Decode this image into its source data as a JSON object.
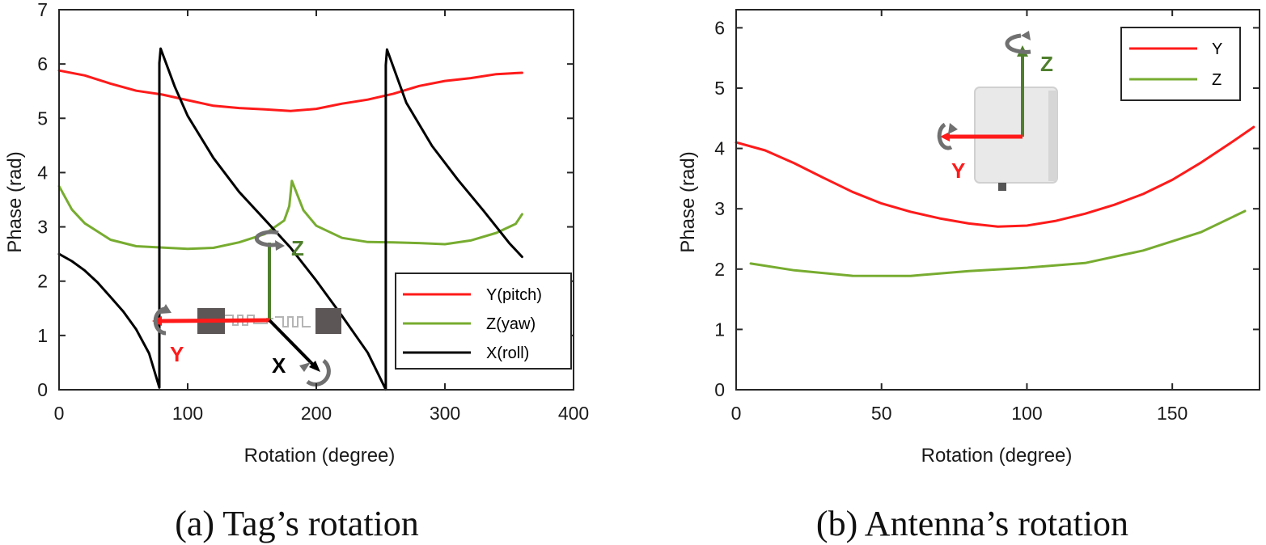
{
  "colors": {
    "red": "#ff1a1a",
    "green": "#77ac30",
    "black": "#000000",
    "axis_green": "#4f7f2d",
    "rotate_arrow": "#707070",
    "chip": "#5c5656",
    "antenna_body": "#e9e9e9"
  },
  "chart_data": [
    {
      "type": "line",
      "caption": "(a) Tag’s rotation",
      "xlabel": "Rotation (degree)",
      "ylabel": "Phase (rad)",
      "xlim": [
        0,
        400
      ],
      "ylim": [
        0,
        7
      ],
      "xticks": [
        0,
        100,
        200,
        300,
        400
      ],
      "yticks": [
        0,
        1,
        2,
        3,
        4,
        5,
        6,
        7
      ],
      "grid": false,
      "legend_position": "bottom-right",
      "series": [
        {
          "name": "Y(pitch)",
          "color": "#ff1a1a",
          "x": [
            0,
            20,
            40,
            60,
            80,
            100,
            120,
            140,
            160,
            180,
            200,
            220,
            240,
            260,
            280,
            300,
            320,
            340,
            360
          ],
          "y": [
            5.88,
            5.77,
            5.65,
            5.52,
            5.42,
            5.33,
            5.25,
            5.18,
            5.15,
            5.15,
            5.18,
            5.25,
            5.35,
            5.47,
            5.58,
            5.68,
            5.76,
            5.81,
            5.82
          ]
        },
        {
          "name": "Z(yaw)",
          "color": "#77ac30",
          "x": [
            0,
            10,
            20,
            40,
            60,
            80,
            100,
            120,
            140,
            160,
            175,
            179,
            181,
            190,
            200,
            220,
            240,
            260,
            280,
            300,
            320,
            340,
            355,
            360
          ],
          "y": [
            3.75,
            3.3,
            3.05,
            2.78,
            2.65,
            2.6,
            2.6,
            2.63,
            2.7,
            2.86,
            3.1,
            3.4,
            3.85,
            3.3,
            3.0,
            2.8,
            2.74,
            2.7,
            2.69,
            2.7,
            2.75,
            2.87,
            3.05,
            3.25
          ]
        },
        {
          "name": "X(roll)",
          "color": "#000000",
          "x": [
            0,
            10,
            20,
            30,
            40,
            50,
            60,
            70,
            78,
            78,
            79,
            90,
            100,
            120,
            140,
            160,
            180,
            200,
            220,
            240,
            254,
            254,
            255,
            270,
            290,
            310,
            330,
            350,
            360
          ],
          "y": [
            2.5,
            2.35,
            2.18,
            1.98,
            1.73,
            1.45,
            1.1,
            0.65,
            0.02,
            6.0,
            6.28,
            5.6,
            5.05,
            4.25,
            3.65,
            3.15,
            2.6,
            2.0,
            1.38,
            0.68,
            0.02,
            6.0,
            6.28,
            5.3,
            4.5,
            3.85,
            3.3,
            2.72,
            2.45
          ]
        }
      ]
    },
    {
      "type": "line",
      "caption": "(b) Antenna’s rotation",
      "xlabel": "Rotation (degree)",
      "ylabel": "Phase (rad)",
      "xlim": [
        0,
        180
      ],
      "ylim": [
        0,
        6.3
      ],
      "xticks": [
        0,
        50,
        100,
        150
      ],
      "yticks": [
        0,
        1,
        2,
        3,
        4,
        5,
        6
      ],
      "grid": false,
      "legend_position": "top-right",
      "series": [
        {
          "name": "Y",
          "color": "#ff1a1a",
          "x": [
            0,
            10,
            20,
            30,
            40,
            50,
            60,
            70,
            80,
            90,
            100,
            110,
            120,
            130,
            140,
            150,
            160,
            170,
            178
          ],
          "y": [
            4.1,
            3.95,
            3.74,
            3.52,
            3.3,
            3.1,
            2.94,
            2.82,
            2.75,
            2.72,
            2.74,
            2.8,
            2.9,
            3.05,
            3.25,
            3.5,
            3.78,
            4.08,
            4.35
          ]
        },
        {
          "name": "Z",
          "color": "#77ac30",
          "x": [
            5,
            20,
            40,
            60,
            80,
            100,
            120,
            140,
            160,
            175
          ],
          "y": [
            2.1,
            1.96,
            1.9,
            1.9,
            1.95,
            2.02,
            2.12,
            2.3,
            2.6,
            2.95
          ]
        }
      ]
    }
  ],
  "insets": {
    "tag": {
      "y_letter": "Y",
      "z_letter": "Z",
      "x_letter": "X"
    },
    "antenna": {
      "y_letter": "Y",
      "z_letter": "Z"
    }
  }
}
